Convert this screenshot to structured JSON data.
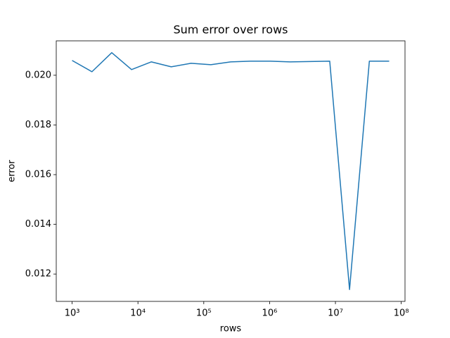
{
  "chart_data": {
    "type": "line",
    "title": "Sum error over rows",
    "xlabel": "rows",
    "ylabel": "error",
    "x": [
      1000,
      2000,
      4000,
      8000,
      16000,
      32000,
      64000,
      128000,
      256000,
      512000,
      1024000,
      2048000,
      4096000,
      8192000,
      16384000,
      32768000,
      65536000
    ],
    "values": [
      0.020596,
      0.020142,
      0.020908,
      0.020227,
      0.020539,
      0.02034,
      0.020482,
      0.020426,
      0.020539,
      0.020567,
      0.020567,
      0.020539,
      0.020553,
      0.020567,
      0.011376,
      0.020567,
      0.020567
    ],
    "color": "#1f77b4",
    "xscale": "log",
    "xlim": [
      574,
      114000000
    ],
    "ylim": [
      0.010899,
      0.021385
    ],
    "xticks": [
      {
        "value": 1000,
        "label": "10³"
      },
      {
        "value": 10000,
        "label": "10⁴"
      },
      {
        "value": 100000,
        "label": "10⁵"
      },
      {
        "value": 1000000,
        "label": "10⁶"
      },
      {
        "value": 10000000,
        "label": "10⁷"
      },
      {
        "value": 100000000,
        "label": "10⁸"
      }
    ],
    "yticks": [
      0.012,
      0.014,
      0.016,
      0.018,
      {
        "value": 0.02,
        "label": "0.020"
      }
    ]
  }
}
